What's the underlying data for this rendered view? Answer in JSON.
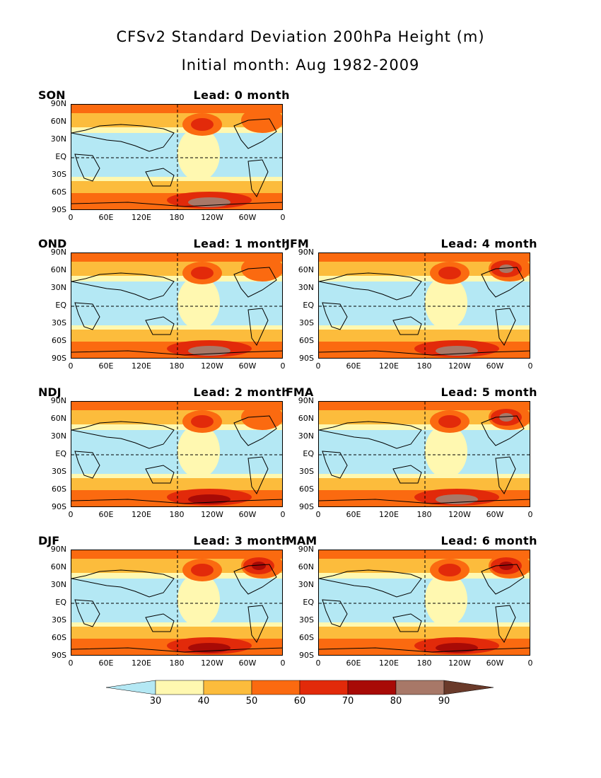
{
  "title": "CFSv2 Standard Deviation 200hPa Height (m)",
  "subtitle": "Initial month: Aug 1982-2009",
  "colors": {
    "below30": "#b4e8f4",
    "30-40": "#fff8b0",
    "40-50": "#fcbc3c",
    "50-60": "#fb6a10",
    "60-70": "#e22a0a",
    "70-80": "#a80a06",
    "80-90": "#a87868",
    "above90": "#6a3a2a"
  },
  "colorbar": {
    "levels": [
      30,
      40,
      50,
      60,
      70,
      80,
      90
    ]
  },
  "y_ticks": [
    "90N",
    "60N",
    "30N",
    "EQ",
    "30S",
    "60S",
    "90S"
  ],
  "x_ticks": [
    "0",
    "60E",
    "120E",
    "180",
    "120W",
    "60W",
    "0"
  ],
  "chart_data": [
    {
      "type": "heatmap",
      "season": "SON",
      "lead": "Lead: 0 month",
      "zmax_class": "80-90"
    },
    {
      "type": "heatmap",
      "season": "OND",
      "lead": "Lead: 1 month",
      "zmax_class": "80-90"
    },
    {
      "type": "heatmap",
      "season": "NDJ",
      "lead": "Lead: 2 month",
      "zmax_class": "70-80"
    },
    {
      "type": "heatmap",
      "season": "DJF",
      "lead": "Lead: 3 month",
      "zmax_class": "70-80"
    },
    {
      "type": "heatmap",
      "season": "JFM",
      "lead": "Lead: 4 month",
      "zmax_class": "80-90"
    },
    {
      "type": "heatmap",
      "season": "FMA",
      "lead": "Lead: 5 month",
      "zmax_class": "80-90"
    },
    {
      "type": "heatmap",
      "season": "MAM",
      "lead": "Lead: 6 month",
      "zmax_class": "70-80"
    }
  ]
}
